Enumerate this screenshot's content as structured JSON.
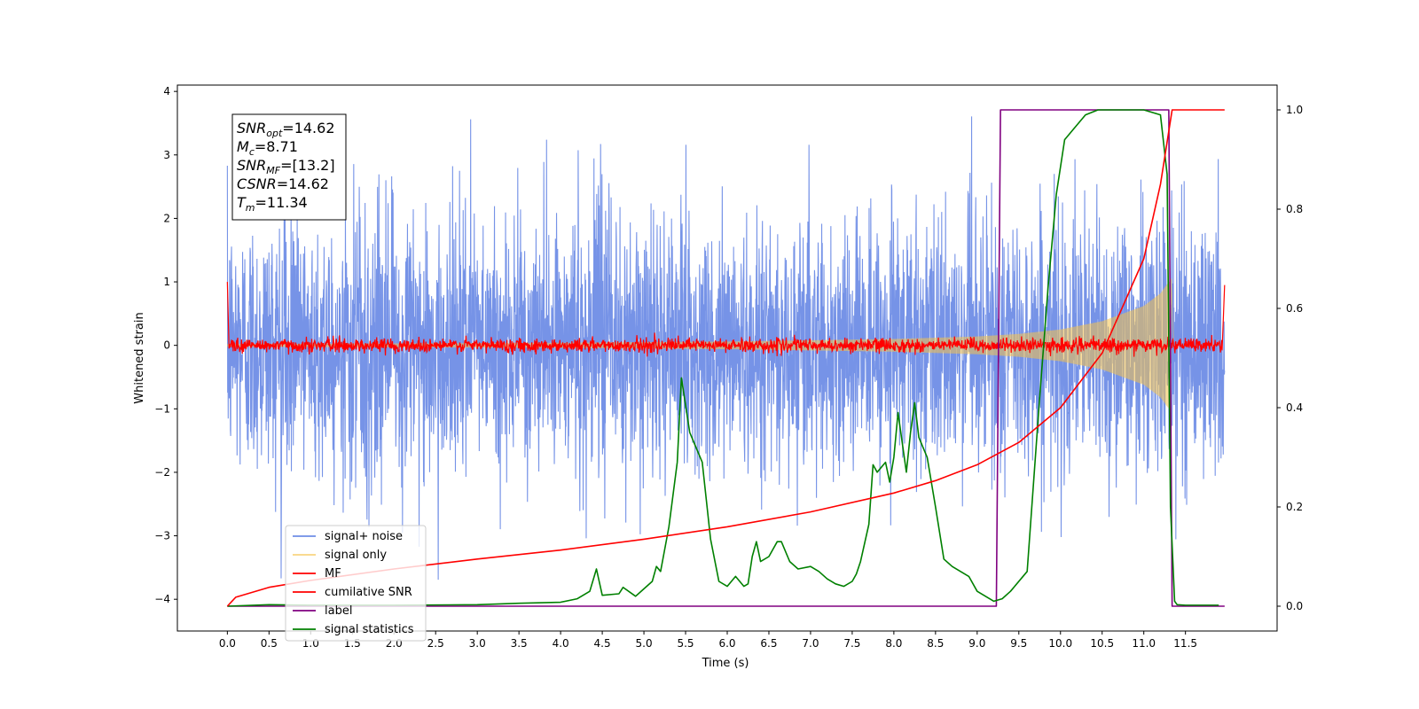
{
  "chart_data": {
    "type": "line",
    "xlabel": "Time (s)",
    "ylabel": "Whitened strain",
    "xlim": [
      -0.6,
      12.6
    ],
    "ylim_left": [
      -4.5,
      4.1
    ],
    "ylim_right": [
      -0.05,
      1.05
    ],
    "x_ticks": [
      "0.0",
      "0.5",
      "1.0",
      "1.5",
      "2.0",
      "2.5",
      "3.0",
      "3.5",
      "4.0",
      "4.5",
      "5.0",
      "5.5",
      "6.0",
      "6.5",
      "7.0",
      "7.5",
      "8.0",
      "8.5",
      "9.0",
      "9.5",
      "10.0",
      "10.5",
      "11.0",
      "11.5"
    ],
    "y_ticks_left": [
      "4",
      "3",
      "2",
      "1",
      "0",
      "−1",
      "−2",
      "−3",
      "−4"
    ],
    "y_ticks_right": [
      "1.0",
      "0.8",
      "0.6",
      "0.4",
      "0.2",
      "0.0"
    ],
    "legend_location": "lower-left",
    "series": [
      {
        "name": "signal+ noise",
        "axis": "left",
        "color": "#6f8de6",
        "style": "noise band, amplitude ≈ ±2.3, peaks to ±3.7",
        "x_range": [
          0,
          11.97
        ]
      },
      {
        "name": "signal only",
        "axis": "left",
        "color": "#f5c24a",
        "style": "chirp with growing amplitude",
        "envelope": {
          "x": [
            0,
            4,
            6,
            8,
            9,
            9.5,
            10,
            10.5,
            11,
            11.2,
            11.33
          ],
          "amp": [
            0.02,
            0.04,
            0.06,
            0.1,
            0.14,
            0.18,
            0.25,
            0.38,
            0.62,
            0.82,
            1.05
          ]
        }
      },
      {
        "name": "MF",
        "axis": "left",
        "color": "#ff0000",
        "style": "noisy trace near 0 (±0.15), spikes to 1.0 at x=0 and 0.95 at x=11.97"
      },
      {
        "name": "cumilative SNR",
        "axis": "right",
        "color": "#ff0000",
        "x": [
          0.0,
          0.1,
          0.5,
          1.0,
          2.0,
          3.0,
          4.0,
          5.0,
          6.0,
          7.0,
          8.0,
          8.5,
          9.0,
          9.5,
          10.0,
          10.5,
          11.0,
          11.2,
          11.34,
          11.97
        ],
        "values": [
          0.0,
          0.018,
          0.038,
          0.052,
          0.075,
          0.095,
          0.113,
          0.135,
          0.16,
          0.19,
          0.228,
          0.253,
          0.285,
          0.33,
          0.4,
          0.51,
          0.7,
          0.85,
          1.0,
          1.0
        ]
      },
      {
        "name": "label",
        "axis": "right",
        "color": "#800080",
        "x": [
          0.0,
          9.23,
          9.28,
          11.3,
          11.34,
          11.97
        ],
        "values": [
          0.0,
          0.0,
          1.0,
          1.0,
          0.0,
          0.0
        ]
      },
      {
        "name": "signal statistics",
        "axis": "right",
        "color": "#008000",
        "x": [
          0.0,
          0.5,
          1.0,
          2.0,
          3.0,
          3.5,
          4.0,
          4.2,
          4.35,
          4.43,
          4.5,
          4.7,
          4.75,
          4.9,
          5.0,
          5.1,
          5.15,
          5.2,
          5.3,
          5.4,
          5.45,
          5.55,
          5.6,
          5.7,
          5.8,
          5.9,
          6.0,
          6.1,
          6.2,
          6.25,
          6.3,
          6.35,
          6.4,
          6.5,
          6.6,
          6.65,
          6.75,
          6.85,
          7.0,
          7.1,
          7.2,
          7.3,
          7.4,
          7.5,
          7.55,
          7.6,
          7.7,
          7.75,
          7.8,
          7.85,
          7.9,
          7.95,
          8.0,
          8.05,
          8.1,
          8.15,
          8.2,
          8.25,
          8.3,
          8.4,
          8.45,
          8.5,
          8.6,
          8.7,
          8.9,
          9.0,
          9.2,
          9.3,
          9.4,
          9.6,
          9.75,
          9.85,
          9.95,
          10.05,
          10.15,
          10.3,
          10.45,
          10.55,
          10.7,
          11.0,
          11.2,
          11.28,
          11.32,
          11.37,
          11.4,
          11.5,
          11.9
        ],
        "values": [
          0.0,
          0.003,
          0.002,
          0.002,
          0.003,
          0.006,
          0.008,
          0.015,
          0.03,
          0.075,
          0.022,
          0.025,
          0.038,
          0.02,
          0.035,
          0.05,
          0.08,
          0.07,
          0.16,
          0.29,
          0.46,
          0.35,
          0.33,
          0.29,
          0.135,
          0.05,
          0.04,
          0.06,
          0.04,
          0.045,
          0.1,
          0.13,
          0.09,
          0.1,
          0.13,
          0.13,
          0.09,
          0.075,
          0.08,
          0.07,
          0.055,
          0.045,
          0.04,
          0.05,
          0.065,
          0.09,
          0.165,
          0.285,
          0.27,
          0.28,
          0.29,
          0.25,
          0.3,
          0.39,
          0.33,
          0.27,
          0.35,
          0.41,
          0.34,
          0.3,
          0.25,
          0.2,
          0.095,
          0.08,
          0.06,
          0.03,
          0.01,
          0.015,
          0.03,
          0.07,
          0.42,
          0.64,
          0.83,
          0.94,
          0.96,
          0.99,
          1.0,
          1.0,
          1.0,
          1.0,
          0.99,
          0.87,
          0.2,
          0.01,
          0.003,
          0.002,
          0.002
        ]
      }
    ]
  },
  "annotation": {
    "lines": [
      {
        "base": "SNR",
        "sub": "opt",
        "value": "=14.62"
      },
      {
        "base": "M",
        "sub": "c",
        "value": "=8.71"
      },
      {
        "base": "SNR",
        "sub": "MF",
        "value": "=[13.2]"
      },
      {
        "base": "CSNR",
        "sub": "",
        "value": "=14.62"
      },
      {
        "base": "T",
        "sub": "m",
        "value": "=11.34"
      }
    ]
  }
}
